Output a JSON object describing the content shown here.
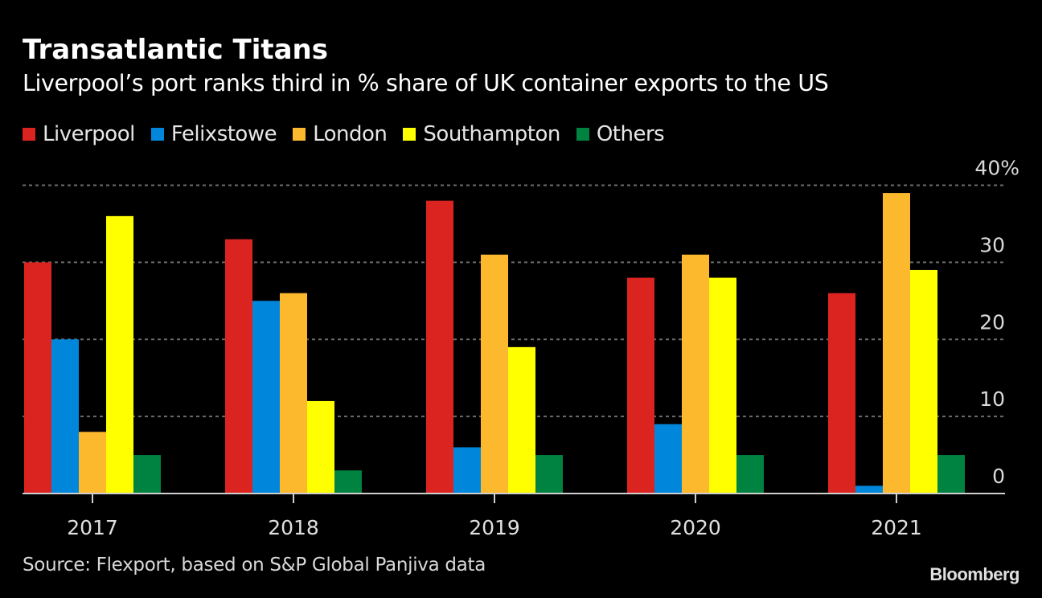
{
  "header": {
    "title": "Transatlantic Titans",
    "subtitle": "Liverpool’s port ranks third in % share of UK container exports to the US"
  },
  "legend": [
    {
      "label": "Liverpool",
      "color": "#db2420"
    },
    {
      "label": "Felixstowe",
      "color": "#0087dc"
    },
    {
      "label": "London",
      "color": "#fdb92e"
    },
    {
      "label": "Southampton",
      "color": "#ffff00"
    },
    {
      "label": "Others",
      "color": "#008241"
    }
  ],
  "footer": {
    "source": "Source: Flexport, based on S&P Global Panjiva data",
    "logo": "Bloomberg"
  },
  "chart_data": {
    "type": "bar",
    "title": "Transatlantic Titans",
    "subtitle": "Liverpool’s port ranks third in % share of UK container exports to the US",
    "xlabel": "",
    "ylabel": "",
    "categories": [
      "2017",
      "2018",
      "2019",
      "2020",
      "2021"
    ],
    "series": [
      {
        "name": "Liverpool",
        "color": "#db2420",
        "values": [
          30,
          33,
          38,
          28,
          26
        ]
      },
      {
        "name": "Felixstowe",
        "color": "#0087dc",
        "values": [
          20,
          25,
          6,
          9,
          1
        ]
      },
      {
        "name": "London",
        "color": "#fdb92e",
        "values": [
          8,
          26,
          31,
          31,
          39
        ]
      },
      {
        "name": "Southampton",
        "color": "#ffff00",
        "values": [
          36,
          12,
          19,
          28,
          29
        ]
      },
      {
        "name": "Others",
        "color": "#008241",
        "values": [
          5,
          3,
          5,
          5,
          5
        ]
      }
    ],
    "ylim": [
      0,
      40
    ],
    "yticks": [
      0,
      10,
      20,
      30,
      40
    ],
    "ytick_labels": [
      "0",
      "10",
      "20",
      "30",
      "40%"
    ],
    "grid": true,
    "y_axis_side": "right",
    "legend_position": "top-left"
  }
}
